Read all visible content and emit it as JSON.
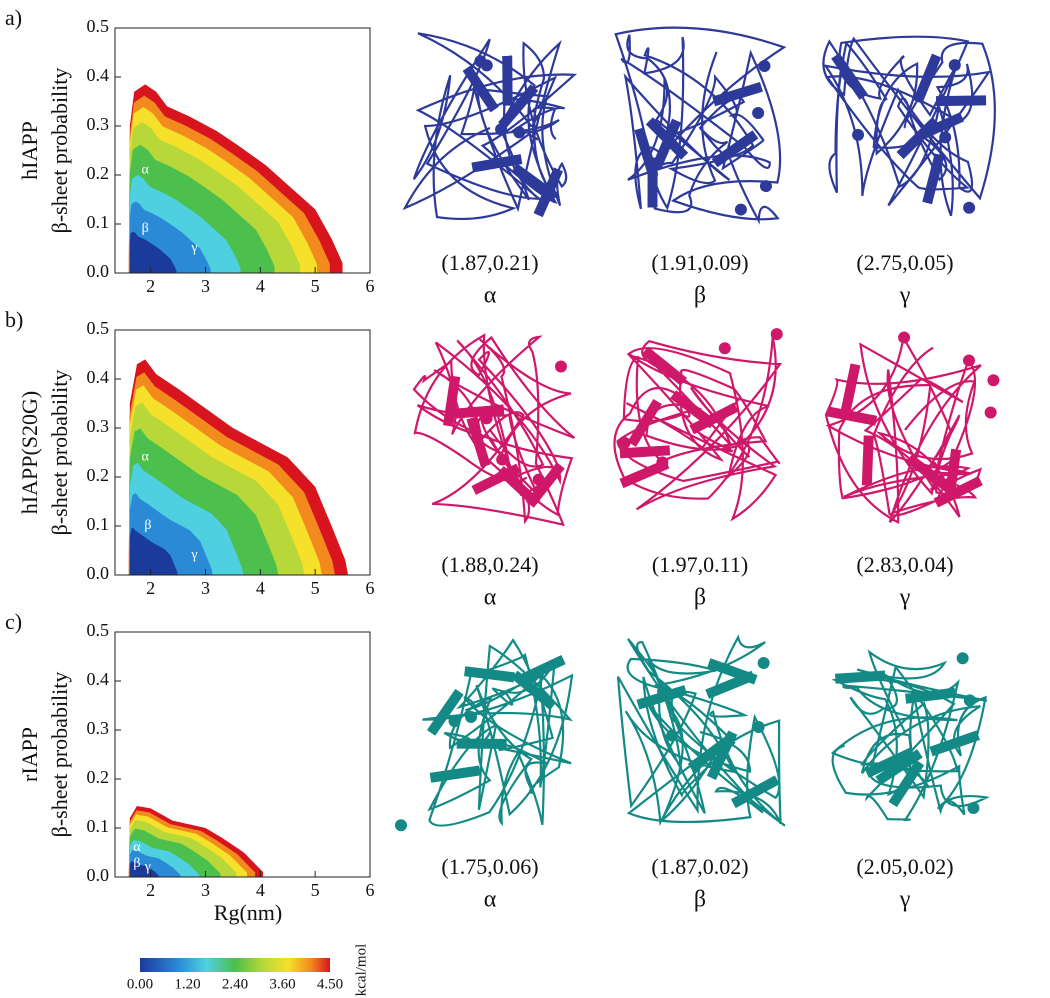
{
  "xlabel": "Rg(nm)",
  "ylabel": "β-sheet probability",
  "yticks": [
    "0.0",
    "0.1",
    "0.2",
    "0.3",
    "0.4",
    "0.5"
  ],
  "xticks": [
    2,
    3,
    4,
    5,
    6
  ],
  "colorbar": {
    "ticks": [
      "0.00",
      "1.20",
      "2.40",
      "3.60",
      "4.50"
    ],
    "unit": "kcal/mol"
  },
  "panels": [
    {
      "label": "a)",
      "name": "hIAPP",
      "states": [
        {
          "symbol": "α",
          "coords": "(1.87,0.21)"
        },
        {
          "symbol": "β",
          "coords": "(1.91,0.09)"
        },
        {
          "symbol": "γ",
          "coords": "(2.75,0.05)"
        }
      ]
    },
    {
      "label": "b)",
      "name": "hIAPP(S20G)",
      "states": [
        {
          "symbol": "α",
          "coords": "(1.88,0.24)"
        },
        {
          "symbol": "β",
          "coords": "(1.97,0.11)"
        },
        {
          "symbol": "γ",
          "coords": "(2.83,0.04)"
        }
      ]
    },
    {
      "label": "c)",
      "name": "rIAPP",
      "states": [
        {
          "symbol": "α",
          "coords": "(1.75,0.06)"
        },
        {
          "symbol": "β",
          "coords": "(1.87,0.02)"
        },
        {
          "symbol": "γ",
          "coords": "(2.05,0.02)"
        }
      ]
    }
  ]
}
